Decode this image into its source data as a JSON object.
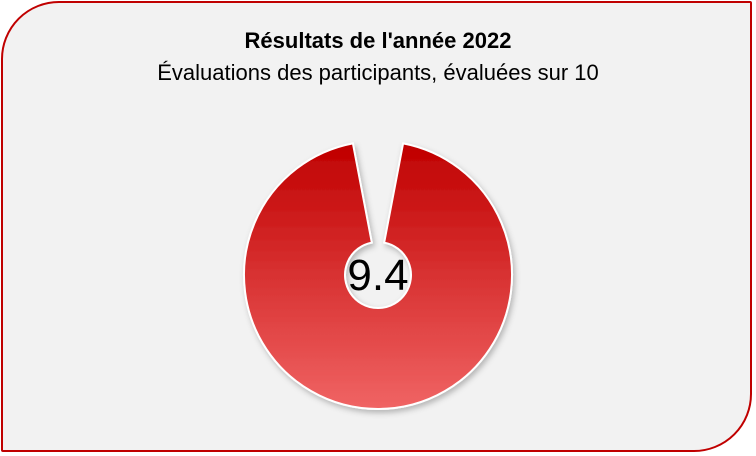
{
  "chart_data": {
    "type": "pie",
    "title": "Résultats de l'année 2022",
    "subtitle": "Évaluations des participants, évaluées sur 10",
    "value": 9.4,
    "max": 10,
    "center_label": "9.4",
    "colors": {
      "ring_top": "#c00000",
      "ring_bottom": "#f06464",
      "border": "#c00000",
      "background": "#f2f2f2",
      "hole": "#f2f2f2"
    }
  }
}
